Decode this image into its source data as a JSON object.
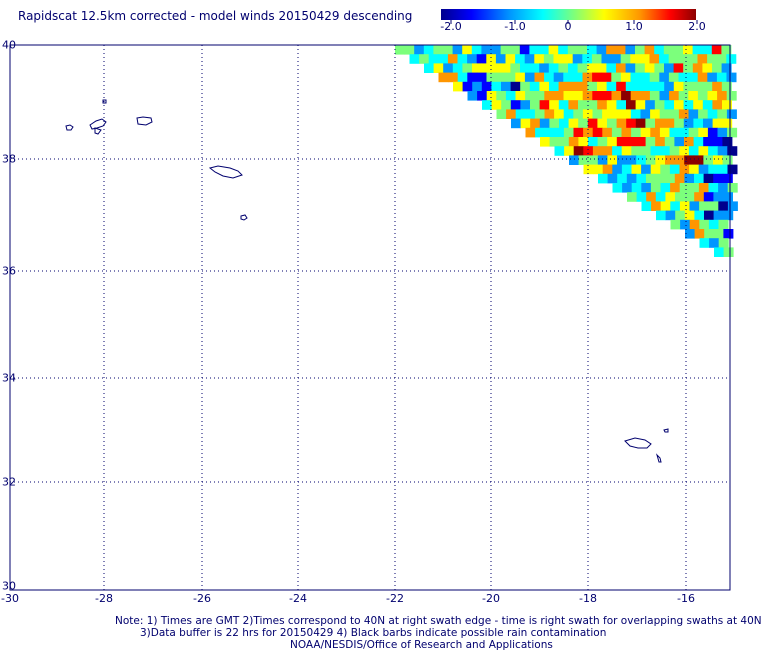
{
  "title": "Rapidscat 12.5km corrected - model winds 20150429 descending",
  "colorbar": {
    "ticks": [
      "-2.0",
      "-1.0",
      "0",
      "1.0",
      "2.0"
    ],
    "min": -2.0,
    "max": 2.0,
    "colors": [
      "#00008c",
      "#0000ff",
      "#0096ff",
      "#00ffff",
      "#7cff7c",
      "#ffff00",
      "#ff9600",
      "#ff0000",
      "#8c0000"
    ]
  },
  "axes": {
    "lat_labels": [
      "40",
      "38",
      "36",
      "34",
      "32",
      "30"
    ],
    "lon_labels": [
      "-30",
      "-28",
      "-26",
      "-24",
      "-22",
      "-20",
      "-18",
      "-16"
    ],
    "lon_range": [
      -30,
      -15
    ],
    "lat_range": [
      30,
      40
    ],
    "grid": "dotted"
  },
  "notes": {
    "line1": "Note: 1) Times are GMT 2)Times correspond to 40N at right swath edge - time is right swath for overlapping swaths at 40N",
    "line2": "3)Data buffer is 22 hrs for 20150429 4) Black barbs indicate possible rain contamination",
    "line3": "NOAA/NESDIS/Office of Research and Applications"
  }
}
